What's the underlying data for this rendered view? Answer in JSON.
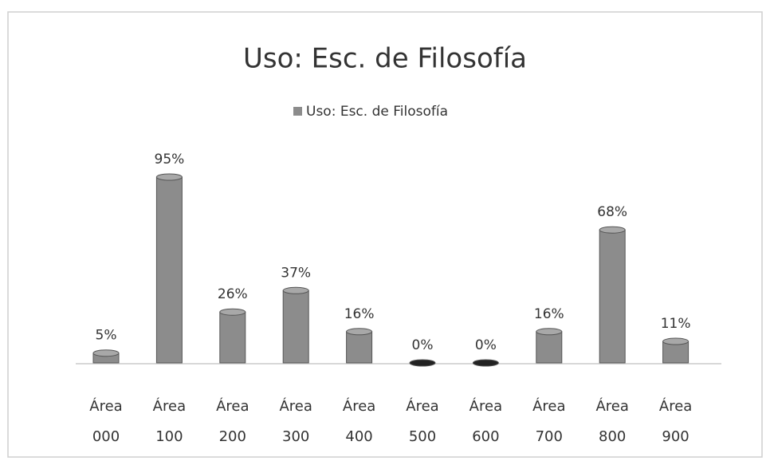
{
  "chart_data": {
    "type": "bar",
    "title": "Uso: Esc. de Filosofía",
    "categories": [
      "Área 000",
      "Área 100",
      "Área 200",
      "Área 300",
      "Área 400",
      "Área 500",
      "Área 600",
      "Área 700",
      "Área 800",
      "Área 900"
    ],
    "series": [
      {
        "name": "Uso: Esc. de Filosofía",
        "color": "#8c8c8c",
        "values": [
          5,
          95,
          26,
          37,
          16,
          0,
          0,
          16,
          68,
          11
        ],
        "value_labels": [
          "5%",
          "95%",
          "26%",
          "37%",
          "16%",
          "0%",
          "0%",
          "16%",
          "68%",
          "11%"
        ]
      }
    ]
  }
}
